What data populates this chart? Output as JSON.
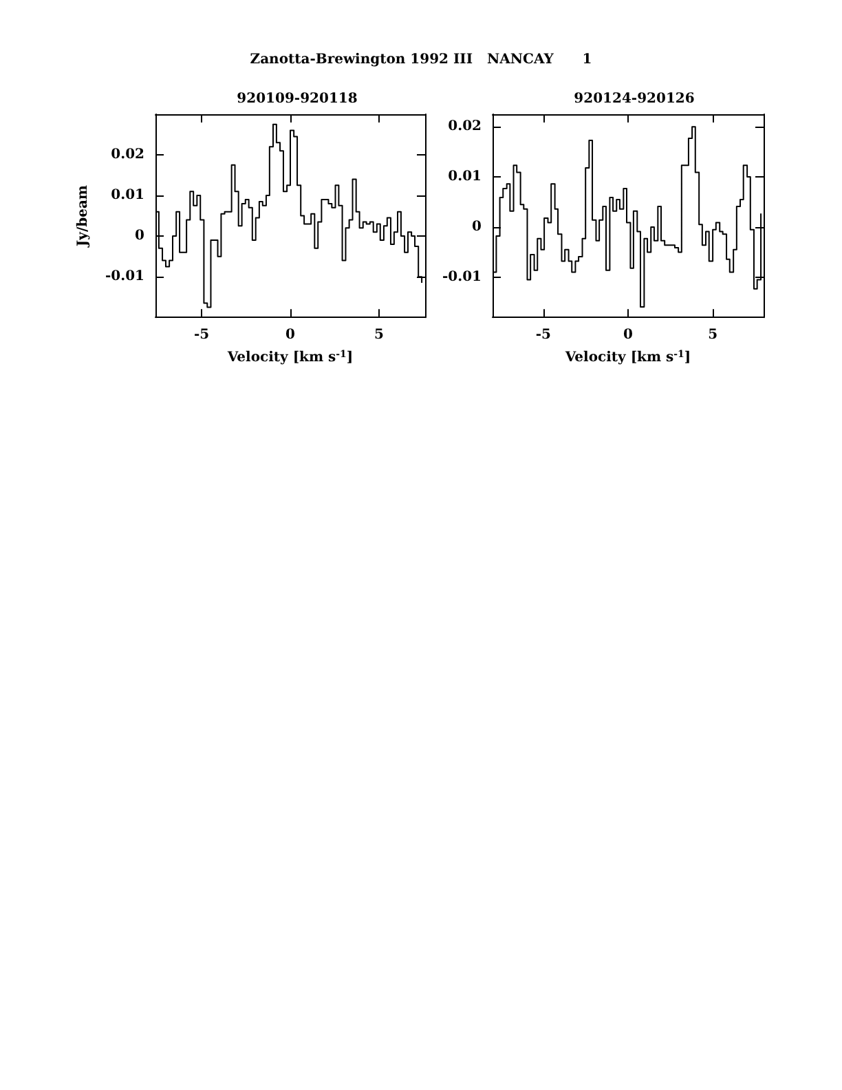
{
  "chart_data": [
    {
      "type": "step",
      "title": "920109-920118",
      "annotations": [
        "Zanotta-Brewington 1992 III   NANCAY      1"
      ],
      "xlabel": "Velocity [km s$^{-1}$]",
      "ylabel": "Jy/beam",
      "x": [
        -7.6,
        -7.41,
        -7.21,
        -7.02,
        -6.82,
        -6.63,
        -6.43,
        -6.24,
        -6.04,
        -5.85,
        -5.65,
        -5.46,
        -5.26,
        -5.07,
        -4.87,
        -4.68,
        -4.48,
        -4.29,
        -4.09,
        -3.9,
        -3.7,
        -3.51,
        -3.31,
        -3.12,
        -2.92,
        -2.73,
        -2.53,
        -2.34,
        -2.14,
        -1.95,
        -1.75,
        -1.56,
        -1.36,
        -1.17,
        -0.97,
        -0.78,
        -0.58,
        -0.39,
        -0.19,
        0,
        0.2,
        0.39,
        0.59,
        0.78,
        0.98,
        1.17,
        1.37,
        1.56,
        1.76,
        1.95,
        2.15,
        2.34,
        2.54,
        2.73,
        2.93,
        3.12,
        3.32,
        3.51,
        3.71,
        3.9,
        4.1,
        4.29,
        4.49,
        4.68,
        4.88,
        5.07,
        5.27,
        5.46,
        5.66,
        5.85,
        6.05,
        6.24,
        6.44,
        6.63,
        6.83,
        7.02,
        7.22,
        7.41
      ],
      "series": [
        {
          "color": "#000000",
          "values": [
            0.006,
            -0.003,
            -0.006,
            -0.0075,
            -0.006,
            0,
            0.006,
            -0.004,
            -0.004,
            0.004,
            0.011,
            0.0075,
            0.01,
            0.004,
            -0.0165,
            -0.0175,
            -0.001,
            -0.001,
            -0.005,
            0.0055,
            0.006,
            0.006,
            0.0175,
            0.011,
            0.0025,
            0.008,
            0.009,
            0.007,
            -0.001,
            0.0045,
            0.0085,
            0.0075,
            0.01,
            0.022,
            0.0275,
            0.023,
            0.021,
            0.011,
            0.0125,
            0.026,
            0.0245,
            0.0125,
            0.005,
            0.003,
            0.003,
            0.0055,
            -0.003,
            0.0035,
            0.009,
            0.009,
            0.008,
            0.007,
            0.0125,
            0.0075,
            -0.006,
            0.002,
            0.004,
            0.014,
            0.006,
            0.002,
            0.0035,
            0.003,
            0.0035,
            0.001,
            0.003,
            -0.001,
            0.0025,
            0.0045,
            -0.002,
            0.001,
            0.006,
            0,
            -0.004,
            0.001,
            0,
            -0.0025,
            -0.01,
            -0.0115
          ]
        }
      ],
      "xlim": [
        -7.6,
        7.6
      ],
      "xticks": [
        -5,
        0,
        5
      ],
      "ylim": [
        -0.02,
        0.03
      ],
      "yticks": [
        -0.01,
        0,
        0.01,
        0.02
      ],
      "grid": false
    },
    {
      "type": "step",
      "title": "920124-920126",
      "xlabel": "Velocity [km s$^{-1}$]",
      "x": [
        -7.97,
        -7.78,
        -7.57,
        -7.38,
        -7.16,
        -6.97,
        -6.76,
        -6.57,
        -6.35,
        -6.16,
        -5.95,
        -5.76,
        -5.54,
        -5.35,
        -5.14,
        -4.95,
        -4.73,
        -4.54,
        -4.32,
        -4.14,
        -3.92,
        -3.73,
        -3.51,
        -3.32,
        -3.11,
        -2.92,
        -2.7,
        -2.51,
        -2.3,
        -2.11,
        -1.89,
        -1.7,
        -1.49,
        -1.3,
        -1.08,
        -0.89,
        -0.68,
        -0.49,
        -0.27,
        -0.08,
        0.14,
        0.32,
        0.54,
        0.73,
        0.95,
        1.14,
        1.35,
        1.54,
        1.76,
        1.95,
        2.16,
        2.35,
        2.57,
        2.76,
        2.97,
        3.16,
        3.38,
        3.57,
        3.78,
        3.97,
        4.19,
        4.38,
        4.59,
        4.78,
        5,
        5.19,
        5.41,
        5.59,
        5.81,
        6,
        6.22,
        6.41,
        6.62,
        6.81,
        7.03,
        7.22,
        7.43,
        7.62,
        7.84
      ],
      "series": [
        {
          "color": "#000000",
          "values": [
            -0.009,
            -0.0018,
            0.0059,
            0.0077,
            0.0086,
            0.0032,
            0.0123,
            0.0109,
            0.0045,
            0.0036,
            -0.0105,
            -0.0055,
            -0.0086,
            -0.0023,
            -0.0045,
            0.0018,
            0.0009,
            0.0086,
            0.0036,
            -0.0014,
            -0.0068,
            -0.0045,
            -0.0068,
            -0.009,
            -0.0068,
            -0.0059,
            -0.0023,
            0.0118,
            0.0173,
            0.0014,
            -0.0027,
            0.0014,
            0.0041,
            -0.0086,
            0.0059,
            0.0032,
            0.0055,
            0.0036,
            0.0077,
            0.0009,
            -0.0082,
            0.0032,
            -0.0009,
            -0.0159,
            -0.0023,
            -0.005,
            0,
            -0.0027,
            0.0041,
            -0.0027,
            -0.0036,
            -0.0036,
            -0.0036,
            -0.0041,
            -0.005,
            0.0123,
            0.0123,
            0.0177,
            0.02,
            0.0109,
            0.0005,
            -0.0036,
            -0.0009,
            -0.0068,
            -0.0005,
            0.0009,
            -0.0009,
            -0.0014,
            -0.0064,
            -0.009,
            -0.0045,
            0.0041,
            0.0055,
            0.0123,
            0.01,
            -0.0005,
            -0.0123,
            -0.0105,
            0.0027
          ]
        }
      ],
      "xlim": [
        -8,
        8
      ],
      "xticks": [
        -5,
        0,
        5
      ],
      "ylim": [
        -0.018,
        0.0225
      ],
      "yticks": [
        -0.01,
        0,
        0.01,
        0.02
      ],
      "grid": false
    }
  ]
}
